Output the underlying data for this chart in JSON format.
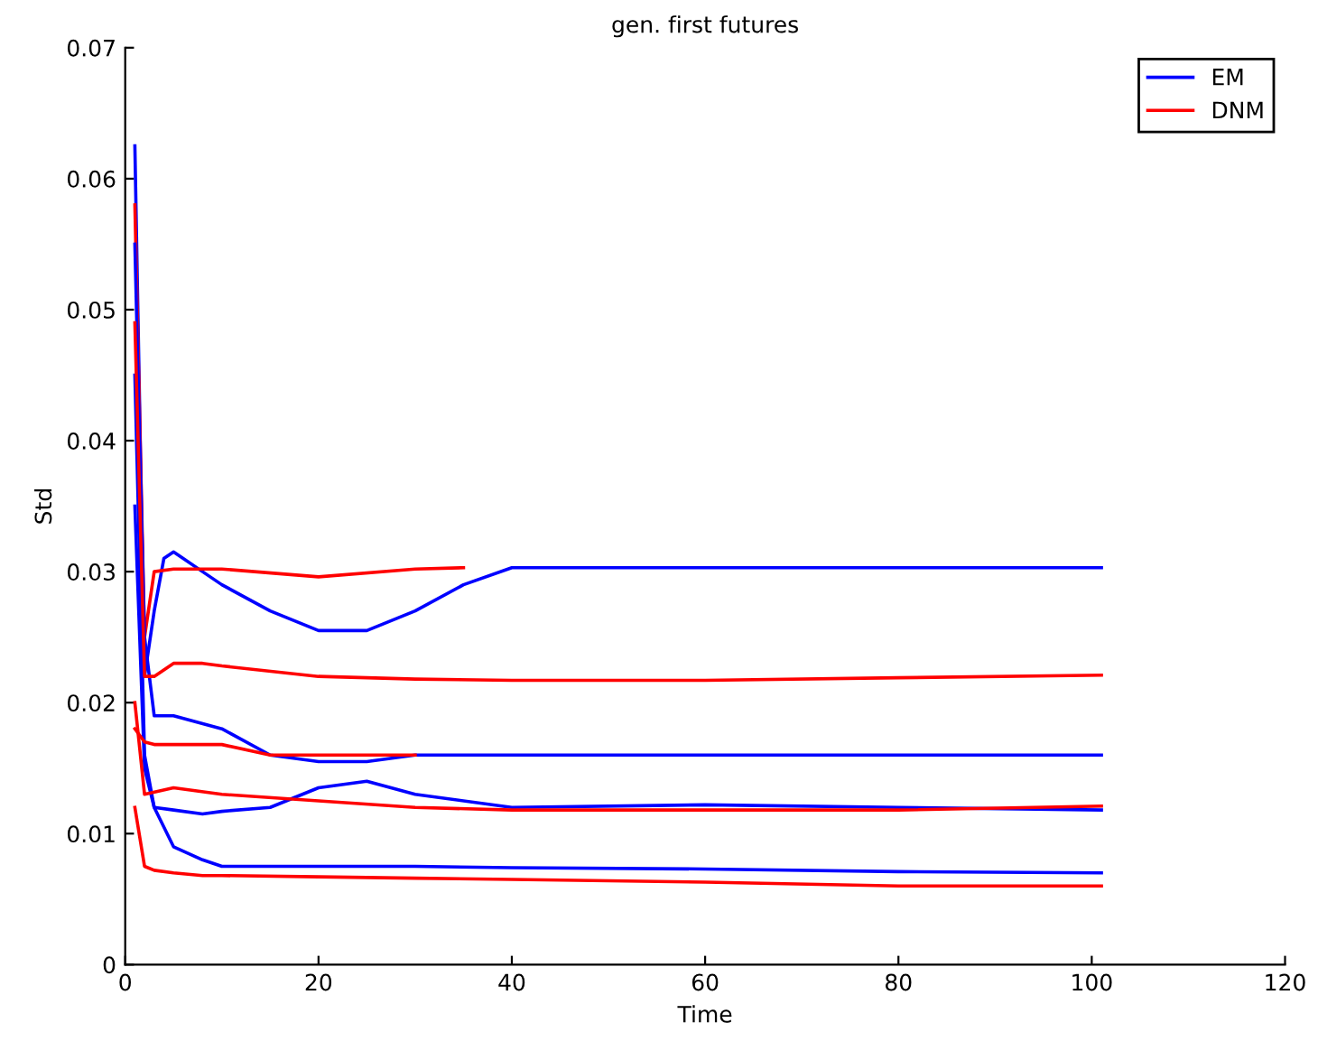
{
  "chart_data": {
    "type": "line",
    "title": "gen. first futures",
    "xlabel": "Time",
    "ylabel": "Std",
    "xlim": [
      0,
      120
    ],
    "xticks": [
      0,
      20,
      40,
      60,
      80,
      100,
      120
    ],
    "ylim": [
      0,
      0.07
    ],
    "yticks": [
      0,
      0.01,
      0.02,
      0.03,
      0.04,
      0.05,
      0.06,
      0.07
    ],
    "grid": false,
    "legend": "top right",
    "marker": "none",
    "line_style": "solid",
    "series": [
      {
        "name": "EM",
        "color": "#0000ff",
        "x": [
          1,
          2,
          3,
          4,
          5,
          6,
          8,
          10,
          15,
          20,
          25,
          30,
          35,
          40,
          45,
          60,
          80,
          101
        ],
        "values": [
          0.0625,
          0.022,
          0.027,
          0.031,
          0.0315,
          0.031,
          0.03,
          0.029,
          0.027,
          0.0255,
          0.0255,
          0.027,
          0.029,
          0.0303,
          0.0303,
          0.0303,
          0.0303,
          0.0303
        ]
      },
      {
        "name": "DNM",
        "color": "#ff0000",
        "x": [
          1,
          2,
          3,
          5,
          8,
          10,
          20,
          30,
          35
        ],
        "values": [
          0.058,
          0.025,
          0.03,
          0.0302,
          0.0302,
          0.0302,
          0.0296,
          0.0302,
          0.0303
        ]
      },
      {
        "color": "#0000ff",
        "x": [
          1,
          2,
          3,
          5,
          10,
          15,
          20,
          25,
          30,
          40,
          60,
          80,
          101
        ],
        "values": [
          0.055,
          0.025,
          0.019,
          0.019,
          0.018,
          0.016,
          0.0155,
          0.0155,
          0.016,
          0.016,
          0.016,
          0.016,
          0.016
        ]
      },
      {
        "color": "#0000ff",
        "x": [
          1,
          2,
          3,
          5,
          8,
          10,
          15,
          20,
          25,
          30,
          40,
          60,
          80,
          101
        ],
        "values": [
          0.045,
          0.016,
          0.012,
          0.0118,
          0.0115,
          0.0117,
          0.012,
          0.0135,
          0.014,
          0.013,
          0.012,
          0.0122,
          0.012,
          0.0118
        ]
      },
      {
        "color": "#0000ff",
        "x": [
          1,
          2,
          3,
          5,
          8,
          10,
          20,
          30,
          40,
          60,
          80,
          101
        ],
        "values": [
          0.035,
          0.015,
          0.012,
          0.009,
          0.008,
          0.0075,
          0.0075,
          0.0075,
          0.0074,
          0.0073,
          0.0071,
          0.007
        ]
      },
      {
        "color": "#ff0000",
        "x": [
          1,
          2,
          3,
          5,
          8,
          10,
          20,
          30,
          40,
          60,
          80,
          101
        ],
        "values": [
          0.049,
          0.022,
          0.022,
          0.023,
          0.023,
          0.0228,
          0.022,
          0.0218,
          0.0217,
          0.0217,
          0.0219,
          0.0221
        ]
      },
      {
        "color": "#ff0000",
        "x": [
          1,
          2,
          3,
          5,
          10,
          15,
          20,
          30
        ],
        "values": [
          0.018,
          0.017,
          0.0168,
          0.0168,
          0.0168,
          0.016,
          0.016,
          0.016
        ]
      },
      {
        "color": "#ff0000",
        "x": [
          1,
          2,
          5,
          10,
          20,
          30,
          40,
          60,
          80,
          101
        ],
        "values": [
          0.02,
          0.013,
          0.0135,
          0.013,
          0.0125,
          0.012,
          0.0118,
          0.0118,
          0.0118,
          0.0121
        ]
      },
      {
        "color": "#ff0000",
        "x": [
          1,
          2,
          3,
          5,
          8,
          10,
          20,
          30,
          40,
          60,
          80,
          101
        ],
        "values": [
          0.012,
          0.0075,
          0.0072,
          0.007,
          0.0068,
          0.0068,
          0.0067,
          0.0066,
          0.0065,
          0.0063,
          0.006,
          0.006
        ]
      }
    ]
  }
}
